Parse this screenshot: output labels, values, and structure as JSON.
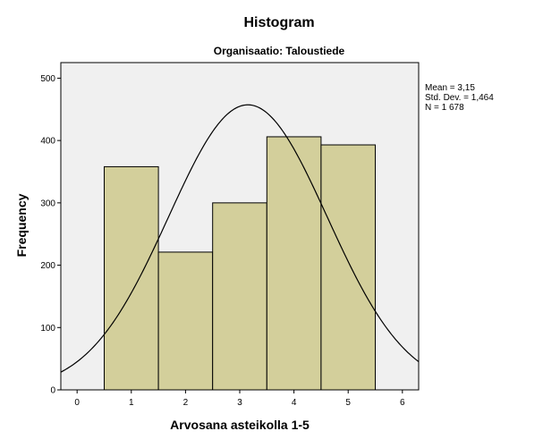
{
  "chart_data": {
    "type": "histogram",
    "title": "Histogram",
    "subtitle": "Organisaatio: Taloustiede",
    "xlabel": "Arvosana asteikolla 1-5",
    "ylabel": "Frequency",
    "xlim": [
      -0.3,
      6.3
    ],
    "ylim": [
      0,
      525
    ],
    "x_ticks": [
      0,
      1,
      2,
      3,
      4,
      5,
      6
    ],
    "y_ticks": [
      0,
      100,
      200,
      300,
      400,
      500
    ],
    "bins": [
      {
        "x": 1,
        "value": 358
      },
      {
        "x": 2,
        "value": 221
      },
      {
        "x": 3,
        "value": 300
      },
      {
        "x": 4,
        "value": 406
      },
      {
        "x": 5,
        "value": 393
      }
    ],
    "bin_width": 1,
    "normal_curve": {
      "mean": 3.15,
      "sd": 1.464,
      "n": 1678
    },
    "stats": [
      "Mean = 3,15",
      "Std. Dev. = 1,464",
      "N = 1 678"
    ],
    "colors": {
      "bar_fill": "#d3cf9b",
      "plot_bg": "#f0f0f0",
      "stroke": "#000000"
    }
  }
}
